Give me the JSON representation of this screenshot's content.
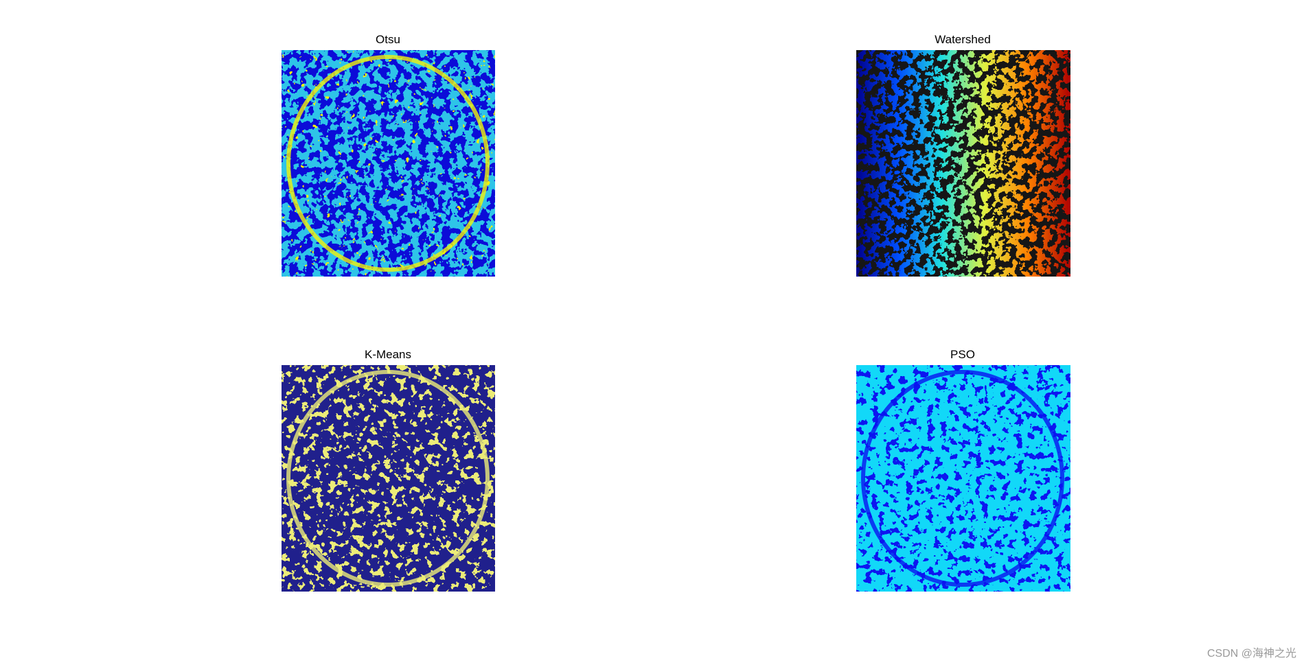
{
  "panels": [
    {
      "title": "Otsu"
    },
    {
      "title": "Watershed"
    },
    {
      "title": "K-Means"
    },
    {
      "title": "PSO"
    }
  ],
  "watermark": "CSDN @海神之光"
}
